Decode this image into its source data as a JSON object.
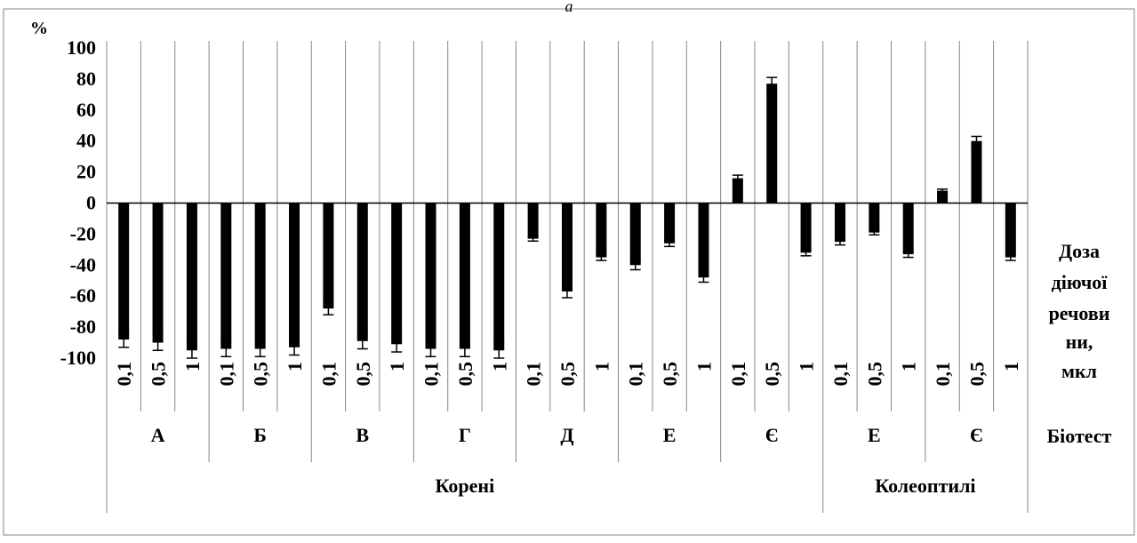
{
  "chart_data": {
    "type": "bar",
    "title": "а",
    "y_unit": "%",
    "ylim": [
      -100,
      100
    ],
    "yticks": [
      100,
      80,
      60,
      40,
      20,
      0,
      -20,
      -40,
      -60,
      -80,
      -100
    ],
    "grid": "vertical category separators",
    "x_axis_title": "Доза діючої речовини, мкл",
    "x_axis_title_lines": [
      "Доза",
      "діючої",
      "речови",
      "ни,",
      "мкл"
    ],
    "biotest_label": "Біотест",
    "groups": [
      {
        "name": "А",
        "organ": "Корені",
        "doses": [
          "0,1",
          "0,5",
          "1"
        ],
        "values": [
          -88,
          -90,
          -95
        ],
        "errors": [
          5,
          5,
          5
        ]
      },
      {
        "name": "Б",
        "organ": "Корені",
        "doses": [
          "0,1",
          "0,5",
          "1"
        ],
        "values": [
          -94,
          -94,
          -93
        ],
        "errors": [
          5,
          5,
          5
        ]
      },
      {
        "name": "В",
        "organ": "Корені",
        "doses": [
          "0,1",
          "0,5",
          "1"
        ],
        "values": [
          -68,
          -89,
          -91
        ],
        "errors": [
          4,
          5,
          5
        ]
      },
      {
        "name": "Г",
        "organ": "Корені",
        "doses": [
          "0,1",
          "0,5",
          "1"
        ],
        "values": [
          -94,
          -94,
          -95
        ],
        "errors": [
          5,
          5,
          5
        ]
      },
      {
        "name": "Д",
        "organ": "Корені",
        "doses": [
          "0,1",
          "0,5",
          "1"
        ],
        "values": [
          -23,
          -57,
          -35
        ],
        "errors": [
          1.5,
          4,
          2
        ]
      },
      {
        "name": "Е",
        "organ": "Корені",
        "doses": [
          "0,1",
          "0,5",
          "1"
        ],
        "values": [
          -40,
          -26,
          -48
        ],
        "errors": [
          3,
          2,
          3
        ]
      },
      {
        "name": "Є",
        "organ": "Корені",
        "doses": [
          "0,1",
          "0,5",
          "1"
        ],
        "values": [
          16,
          77,
          -32
        ],
        "errors": [
          2,
          4,
          2
        ]
      },
      {
        "name": "Е",
        "organ": "Колеоптилі",
        "doses": [
          "0,1",
          "0,5",
          "1"
        ],
        "values": [
          -25,
          -19,
          -33
        ],
        "errors": [
          2,
          1.5,
          2
        ]
      },
      {
        "name": "Є",
        "organ": "Колеоптилі",
        "doses": [
          "0,1",
          "0,5",
          "1"
        ],
        "values": [
          8,
          40,
          -35
        ],
        "errors": [
          1,
          3,
          2
        ]
      }
    ],
    "organs": [
      {
        "name": "Корені",
        "group_count": 7
      },
      {
        "name": "Колеоптилі",
        "group_count": 2
      }
    ],
    "colors": {
      "bar": "#000000",
      "axis": "#000000",
      "grid": "#868686",
      "error": "#000000"
    }
  }
}
